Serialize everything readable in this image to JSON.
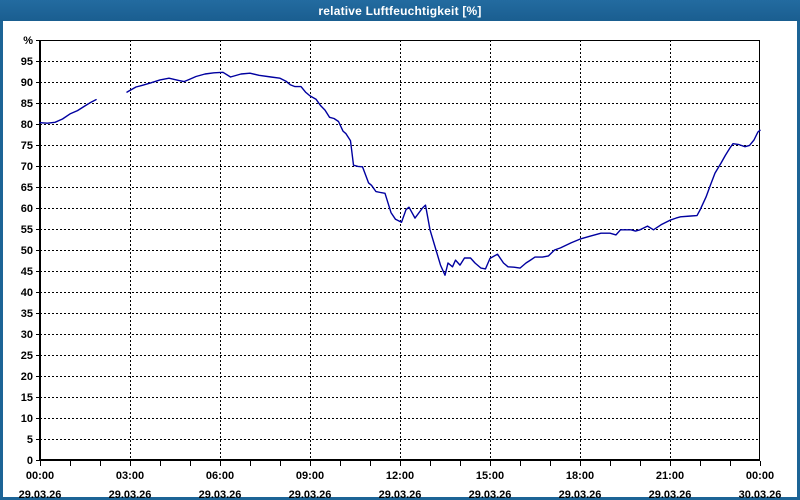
{
  "window": {
    "title": "relative Luftfeuchtigkeit [%]",
    "colors": {
      "titlebar": "#1d6496",
      "titlebar_text": "#ffffff",
      "border": "#1d6496",
      "plot_background": "#ffffff"
    }
  },
  "chart_data": {
    "type": "line",
    "title": "relative Luftfeuchtigkeit [%]",
    "ylabel": "%",
    "unit": "%",
    "ylim": [
      0,
      100
    ],
    "xlim_hours": [
      0,
      24
    ],
    "x_minor_tick_hours": 1,
    "x_major_tick_hours": 3,
    "grid": {
      "style": "dashed",
      "color": "#000000"
    },
    "line_color": "#0000a0",
    "y_ticks": [
      {
        "value": 100,
        "label": "%"
      },
      {
        "value": 95,
        "label": "95"
      },
      {
        "value": 90,
        "label": "90"
      },
      {
        "value": 85,
        "label": "85"
      },
      {
        "value": 80,
        "label": "80"
      },
      {
        "value": 75,
        "label": "75"
      },
      {
        "value": 70,
        "label": "70"
      },
      {
        "value": 65,
        "label": "65"
      },
      {
        "value": 60,
        "label": "60"
      },
      {
        "value": 55,
        "label": "55"
      },
      {
        "value": 50,
        "label": "50"
      },
      {
        "value": 45,
        "label": "45"
      },
      {
        "value": 40,
        "label": "40"
      },
      {
        "value": 35,
        "label": "35"
      },
      {
        "value": 30,
        "label": "30"
      },
      {
        "value": 25,
        "label": "25"
      },
      {
        "value": 20,
        "label": "20"
      },
      {
        "value": 15,
        "label": "15"
      },
      {
        "value": 10,
        "label": "10"
      },
      {
        "value": 5,
        "label": "5"
      },
      {
        "value": 0,
        "label": "0"
      }
    ],
    "x_ticks": [
      {
        "hour": 0,
        "time": "00:00",
        "date": "29.03.26"
      },
      {
        "hour": 3,
        "time": "03:00",
        "date": "29.03.26"
      },
      {
        "hour": 6,
        "time": "06:00",
        "date": "29.03.26"
      },
      {
        "hour": 9,
        "time": "09:00",
        "date": "29.03.26"
      },
      {
        "hour": 12,
        "time": "12:00",
        "date": "29.03.26"
      },
      {
        "hour": 15,
        "time": "15:00",
        "date": "29.03.26"
      },
      {
        "hour": 18,
        "time": "18:00",
        "date": "29.03.26"
      },
      {
        "hour": 21,
        "time": "21:00",
        "date": "29.03.26"
      },
      {
        "hour": 24,
        "time": "00:00",
        "date": "30.03.26"
      }
    ],
    "series": [
      {
        "name": "relative Luftfeuchtigkeit [%]",
        "segments_h_v": [
          [
            [
              0.0,
              80.3
            ],
            [
              0.25,
              80.2
            ],
            [
              0.5,
              80.4
            ],
            [
              0.75,
              81.2
            ],
            [
              1.0,
              82.4
            ],
            [
              1.25,
              83.2
            ],
            [
              1.5,
              84.3
            ],
            [
              1.7,
              85.2
            ],
            [
              1.87,
              85.8
            ]
          ],
          [
            [
              2.9,
              87.6
            ],
            [
              3.0,
              88.0
            ],
            [
              3.2,
              88.8
            ],
            [
              3.4,
              89.2
            ],
            [
              3.7,
              89.8
            ],
            [
              4.0,
              90.5
            ],
            [
              4.3,
              90.9
            ],
            [
              4.6,
              90.4
            ],
            [
              4.8,
              90.1
            ],
            [
              5.0,
              90.7
            ],
            [
              5.2,
              91.3
            ],
            [
              5.5,
              91.9
            ],
            [
              5.8,
              92.2
            ],
            [
              6.1,
              92.3
            ],
            [
              6.35,
              91.2
            ],
            [
              6.7,
              91.9
            ],
            [
              7.0,
              92.1
            ],
            [
              7.3,
              91.6
            ],
            [
              7.7,
              91.2
            ],
            [
              8.0,
              90.9
            ],
            [
              8.2,
              90.2
            ],
            [
              8.35,
              89.3
            ],
            [
              8.5,
              88.9
            ],
            [
              8.7,
              88.9
            ],
            [
              8.85,
              87.6
            ],
            [
              9.0,
              86.7
            ],
            [
              9.2,
              85.9
            ],
            [
              9.35,
              84.4
            ],
            [
              9.5,
              83.3
            ],
            [
              9.65,
              81.6
            ],
            [
              9.8,
              81.3
            ],
            [
              9.95,
              80.6
            ],
            [
              10.1,
              78.3
            ],
            [
              10.2,
              77.7
            ],
            [
              10.35,
              76.0
            ],
            [
              10.45,
              70.2
            ],
            [
              10.6,
              69.9
            ],
            [
              10.75,
              69.8
            ],
            [
              10.95,
              66.0
            ],
            [
              11.05,
              65.4
            ],
            [
              11.2,
              63.9
            ],
            [
              11.35,
              63.7
            ],
            [
              11.5,
              63.5
            ],
            [
              11.7,
              58.9
            ],
            [
              11.85,
              57.3
            ],
            [
              12.05,
              56.6
            ],
            [
              12.2,
              59.6
            ],
            [
              12.3,
              60.2
            ],
            [
              12.5,
              57.6
            ],
            [
              12.75,
              60.0
            ],
            [
              12.85,
              60.7
            ],
            [
              13.0,
              54.8
            ],
            [
              13.2,
              50.0
            ],
            [
              13.35,
              46.4
            ],
            [
              13.5,
              44.0
            ],
            [
              13.6,
              46.9
            ],
            [
              13.75,
              46.0
            ],
            [
              13.85,
              47.6
            ],
            [
              14.0,
              46.4
            ],
            [
              14.15,
              48.1
            ],
            [
              14.35,
              48.1
            ],
            [
              14.5,
              46.9
            ],
            [
              14.7,
              45.7
            ],
            [
              14.85,
              45.5
            ],
            [
              15.0,
              48.0
            ],
            [
              15.25,
              49.0
            ],
            [
              15.45,
              46.9
            ],
            [
              15.6,
              46.0
            ],
            [
              15.8,
              45.9
            ],
            [
              16.0,
              45.7
            ],
            [
              16.2,
              46.9
            ],
            [
              16.35,
              47.6
            ],
            [
              16.5,
              48.3
            ],
            [
              16.75,
              48.3
            ],
            [
              16.95,
              48.6
            ],
            [
              17.15,
              50.0
            ],
            [
              17.35,
              50.5
            ],
            [
              17.7,
              51.7
            ],
            [
              18.0,
              52.6
            ],
            [
              18.35,
              53.3
            ],
            [
              18.7,
              54.0
            ],
            [
              19.0,
              54.0
            ],
            [
              19.2,
              53.6
            ],
            [
              19.35,
              54.8
            ],
            [
              19.7,
              54.8
            ],
            [
              19.85,
              54.5
            ],
            [
              20.0,
              54.8
            ],
            [
              20.25,
              55.7
            ],
            [
              20.45,
              54.8
            ],
            [
              20.7,
              56.0
            ],
            [
              21.0,
              57.1
            ],
            [
              21.2,
              57.6
            ],
            [
              21.35,
              57.9
            ],
            [
              21.7,
              58.1
            ],
            [
              21.9,
              58.2
            ],
            [
              22.0,
              59.5
            ],
            [
              22.2,
              62.6
            ],
            [
              22.35,
              65.5
            ],
            [
              22.5,
              68.3
            ],
            [
              22.7,
              70.7
            ],
            [
              22.85,
              72.6
            ],
            [
              23.0,
              74.3
            ],
            [
              23.1,
              75.3
            ],
            [
              23.3,
              75.1
            ],
            [
              23.5,
              74.6
            ],
            [
              23.65,
              74.9
            ],
            [
              23.8,
              76.2
            ],
            [
              23.93,
              78.1
            ],
            [
              24.0,
              78.5
            ]
          ]
        ]
      }
    ]
  }
}
